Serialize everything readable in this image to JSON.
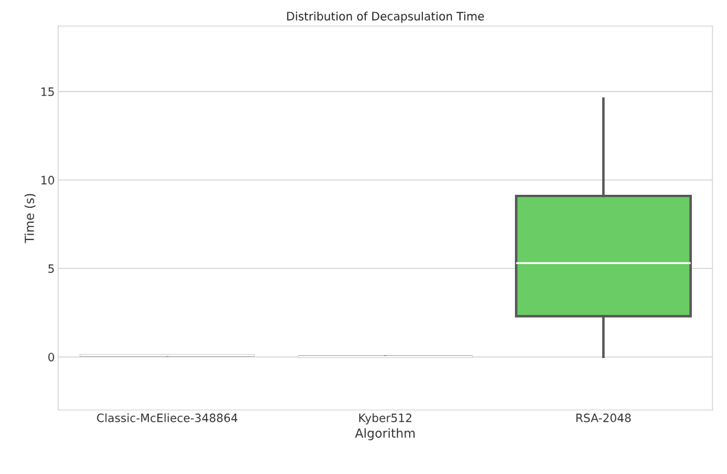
{
  "chart_data": {
    "type": "box",
    "title": "Distribution of Decapsulation Time",
    "xlabel": "Algorithm",
    "ylabel": "Time (s)",
    "categories": [
      "Classic-McEliece-348864",
      "Kyber512",
      "RSA-2048"
    ],
    "colors": [
      "#555555",
      "#555555",
      "#6acc64"
    ],
    "boxes": [
      {
        "low": 0.1,
        "q1": 0.1,
        "median": 0.1,
        "q3": 0.1,
        "high": 0.1
      },
      {
        "low": 0.0,
        "q1": 0.0,
        "median": 0.0,
        "q3": 0.0,
        "high": 0.0
      },
      {
        "low": 0.0,
        "q1": 2.3,
        "median": 5.3,
        "q3": 9.1,
        "high": 14.6
      }
    ],
    "ylim": [
      -3.0,
      18.7
    ],
    "yticks": [
      0,
      5,
      10,
      15
    ],
    "grid": "y",
    "legend": false
  }
}
